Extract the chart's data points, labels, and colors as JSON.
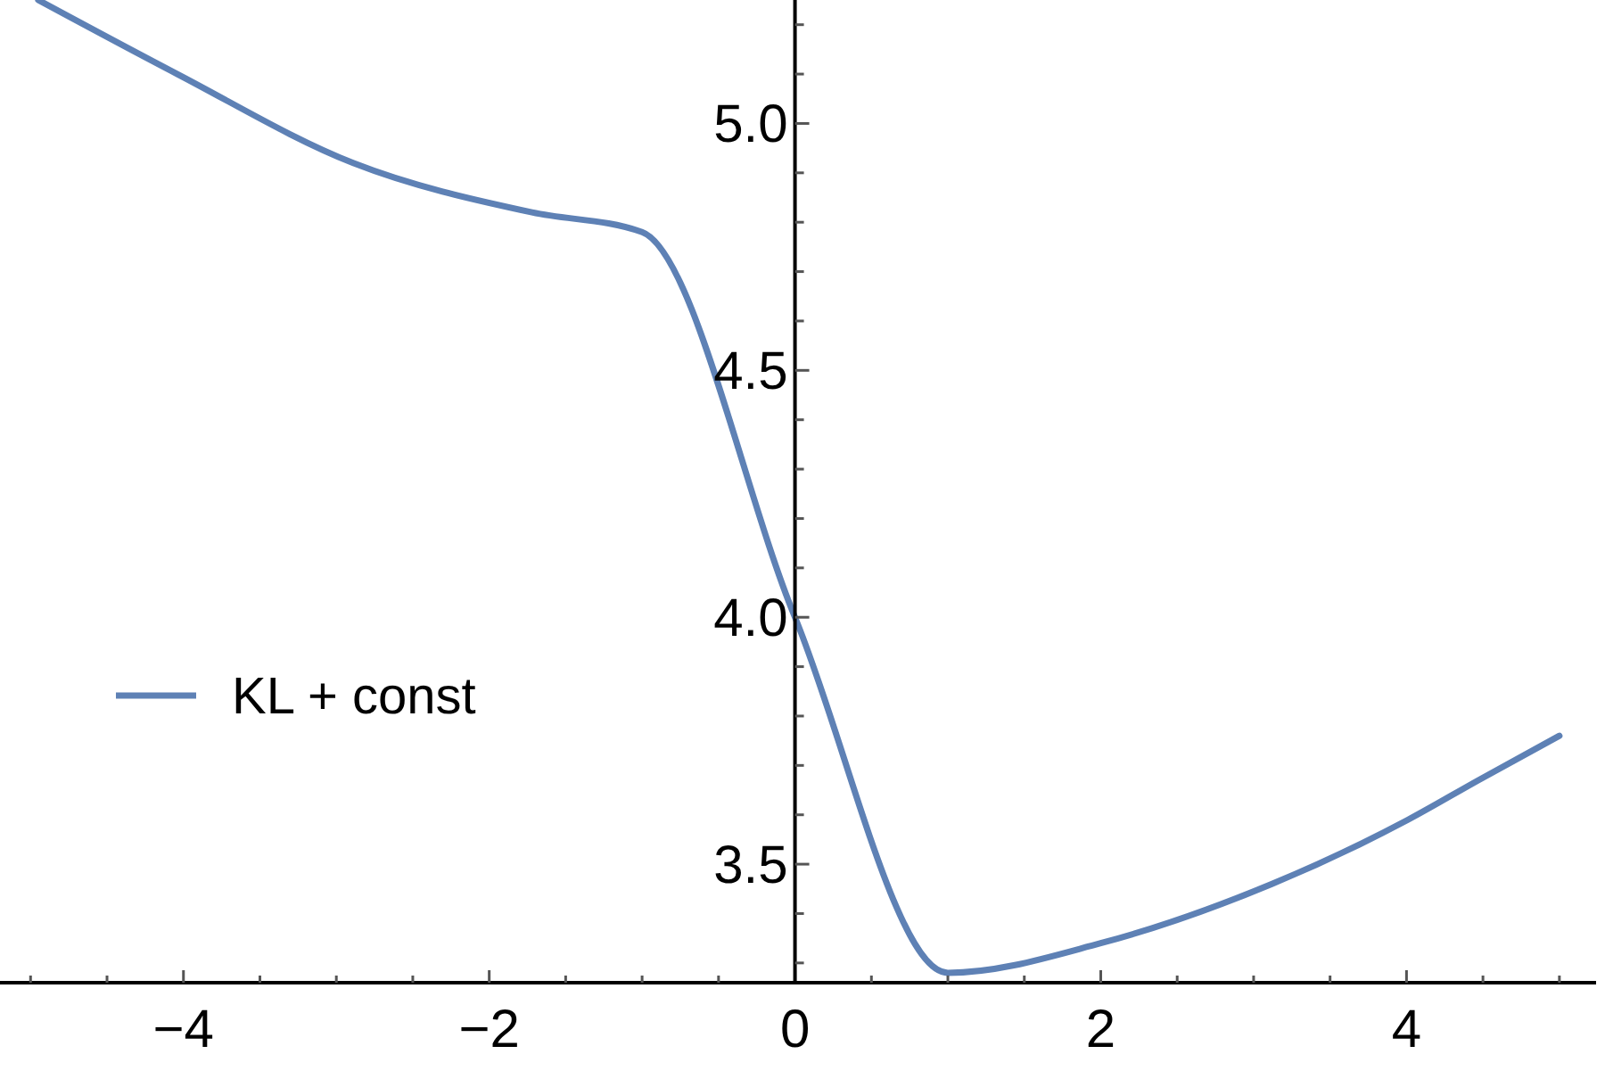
{
  "chart_data": {
    "type": "line",
    "xlim": [
      -5.2,
      5.24
    ],
    "ylim": [
      3.26,
      5.25
    ],
    "xticks": [
      {
        "value": -5,
        "label": null
      },
      {
        "value": -4.5,
        "label": null
      },
      {
        "value": -4,
        "label": "−4"
      },
      {
        "value": -3.5,
        "label": null
      },
      {
        "value": -3,
        "label": null
      },
      {
        "value": -2.5,
        "label": null
      },
      {
        "value": -2,
        "label": "−2"
      },
      {
        "value": -1.5,
        "label": null
      },
      {
        "value": -1,
        "label": null
      },
      {
        "value": -0.5,
        "label": null
      },
      0,
      {
        "value": 0.5,
        "label": null
      },
      {
        "value": 1,
        "label": null
      },
      {
        "value": 1.5,
        "label": null
      },
      2,
      {
        "value": 2.5,
        "label": null
      },
      {
        "value": 3,
        "label": null
      },
      {
        "value": 3.5,
        "label": null
      },
      4,
      {
        "value": 4.5,
        "label": null
      },
      {
        "value": 5,
        "label": null
      }
    ],
    "yticks": [
      {
        "value": 3.3,
        "label": null
      },
      {
        "value": 3.4,
        "label": null
      },
      {
        "value": 3.5,
        "label": "3.5"
      },
      {
        "value": 3.6,
        "label": null
      },
      {
        "value": 3.7,
        "label": null
      },
      {
        "value": 3.8,
        "label": null
      },
      {
        "value": 3.9,
        "label": null
      },
      {
        "value": 4,
        "label": "4.0"
      },
      {
        "value": 4.1,
        "label": null
      },
      {
        "value": 4.2,
        "label": null
      },
      {
        "value": 4.3,
        "label": null
      },
      {
        "value": 4.4,
        "label": null
      },
      {
        "value": 4.5,
        "label": "4.5"
      },
      {
        "value": 4.6,
        "label": null
      },
      {
        "value": 4.7,
        "label": null
      },
      {
        "value": 4.8,
        "label": null
      },
      {
        "value": 4.9,
        "label": null
      },
      {
        "value": 5,
        "label": "5.0"
      },
      {
        "value": 5.1,
        "label": null
      },
      {
        "value": 5.2,
        "label": null
      }
    ],
    "legend": "left",
    "grid": false,
    "series": [
      {
        "name": "KL + const",
        "color": "#5e81b5",
        "x": [
          -4.95,
          -4.04,
          -2.89,
          -1.72,
          -1,
          0,
          1,
          2,
          3.12,
          4.01,
          4.47,
          5
        ],
        "values": [
          5.25,
          5.1,
          4.92,
          4.82,
          4.78,
          4.0,
          3.28,
          3.34,
          3.46,
          3.59,
          3.67,
          3.76
        ]
      }
    ]
  }
}
